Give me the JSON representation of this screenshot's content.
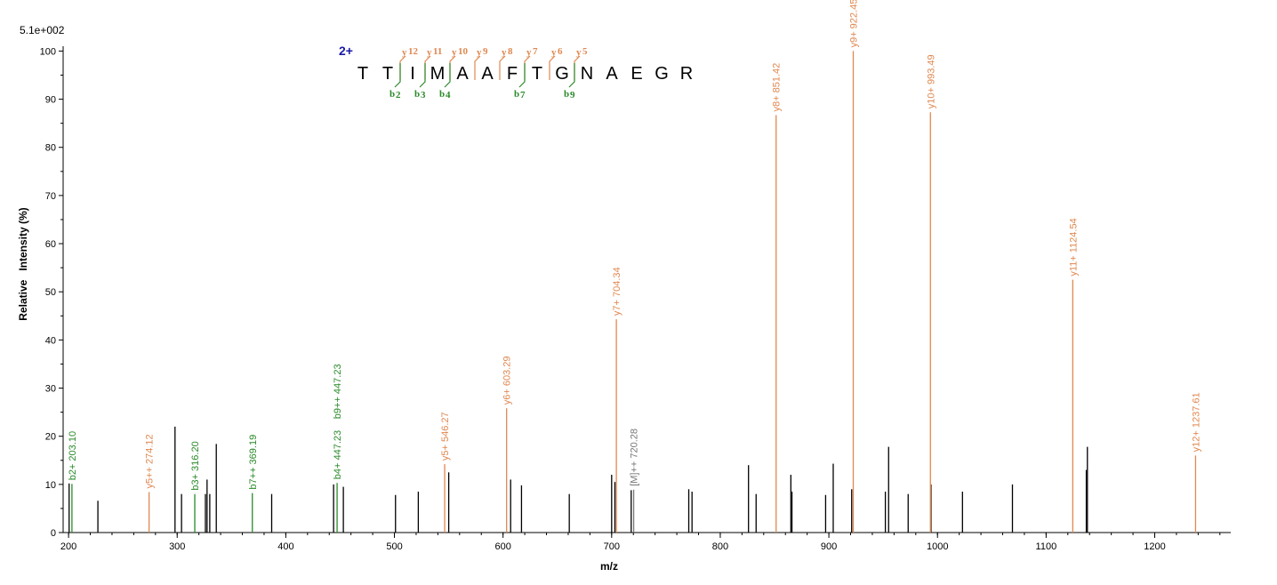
{
  "colors": {
    "y": "#e08850",
    "b": "#2a8a2a",
    "m": "#777777",
    "unassigned": "#000000",
    "charge": "#1a1aa8",
    "axis": "#000000"
  },
  "chart_data": {
    "type": "bar",
    "scale_label": "5.1e+002",
    "xlabel": "m/z",
    "ylabel": "Relative   Intensity (%)",
    "xlim": [
      195,
      1270
    ],
    "ylim": [
      0,
      101
    ],
    "x_ticks": [
      200,
      300,
      400,
      500,
      600,
      700,
      800,
      900,
      1000,
      1100,
      1200
    ],
    "y_ticks": [
      0,
      10,
      20,
      30,
      40,
      50,
      60,
      70,
      80,
      90,
      100
    ],
    "x_minor_step": 20,
    "labeled_peaks": [
      {
        "mz": 203.1,
        "intensity": 10.1,
        "ion": "b",
        "label": "b2+ 203.10"
      },
      {
        "mz": 274.12,
        "intensity": 8.4,
        "ion": "y",
        "label": "y5++ 274.12"
      },
      {
        "mz": 316.2,
        "intensity": 8.0,
        "ion": "b",
        "label": "b3+ 316.20"
      },
      {
        "mz": 369.19,
        "intensity": 8.2,
        "ion": "b",
        "label": "b7++ 369.19"
      },
      {
        "mz": 447.23,
        "intensity": 10.3,
        "ion": "b",
        "label": "b4+ 447.23",
        "label2": "b9++ 447.23"
      },
      {
        "mz": 546.27,
        "intensity": 14.2,
        "ion": "y",
        "label": "y5+ 546.27"
      },
      {
        "mz": 603.29,
        "intensity": 25.8,
        "ion": "y",
        "label": "y6+ 603.29"
      },
      {
        "mz": 704.34,
        "intensity": 44.3,
        "ion": "y",
        "label": "y7+ 704.34"
      },
      {
        "mz": 720.28,
        "intensity": 8.9,
        "ion": "m",
        "label": "[M]++ 720.28"
      },
      {
        "mz": 851.42,
        "intensity": 86.7,
        "ion": "y",
        "label": "y8+ 851.42"
      },
      {
        "mz": 922.45,
        "intensity": 100.0,
        "ion": "y",
        "label": "y9+ 922.45"
      },
      {
        "mz": 993.49,
        "intensity": 87.3,
        "ion": "y",
        "label": "y10+ 993.49"
      },
      {
        "mz": 1124.54,
        "intensity": 52.5,
        "ion": "y",
        "label": "y11+ 1124.54"
      },
      {
        "mz": 1237.61,
        "intensity": 16.0,
        "ion": "y",
        "label": "y12+ 1237.61"
      }
    ],
    "unlabeled_peaks": [
      [
        200.5,
        10.2
      ],
      [
        227,
        6.6
      ],
      [
        298,
        22.0
      ],
      [
        304,
        8.0
      ],
      [
        326,
        8.0
      ],
      [
        327.5,
        11.0
      ],
      [
        330,
        8.0
      ],
      [
        336,
        18.4
      ],
      [
        387,
        8.0
      ],
      [
        444,
        10.0
      ],
      [
        453,
        9.5
      ],
      [
        501,
        7.8
      ],
      [
        522,
        8.5
      ],
      [
        550,
        12.5
      ],
      [
        607,
        11.0
      ],
      [
        617,
        9.8
      ],
      [
        661,
        8.0
      ],
      [
        700,
        12.0
      ],
      [
        703,
        10.5
      ],
      [
        718,
        8.8
      ],
      [
        771,
        9.0
      ],
      [
        774,
        8.5
      ],
      [
        826,
        14.0
      ],
      [
        833,
        8.0
      ],
      [
        865,
        12.0
      ],
      [
        866,
        8.5
      ],
      [
        897,
        7.8
      ],
      [
        904,
        14.3
      ],
      [
        921,
        9.0
      ],
      [
        952,
        8.5
      ],
      [
        955,
        17.8
      ],
      [
        973,
        8.0
      ],
      [
        994,
        10.0
      ],
      [
        1023,
        8.5
      ],
      [
        1069,
        10.0
      ],
      [
        1137,
        13.0
      ],
      [
        1138,
        17.8
      ]
    ]
  },
  "sequence": {
    "charge": "2+",
    "residues": [
      "T",
      "T",
      "I",
      "M",
      "A",
      "A",
      "F",
      "T",
      "G",
      "N",
      "A",
      "E",
      "G",
      "R"
    ],
    "y_ions": [
      {
        "after": 2,
        "label": "y",
        "num": "12"
      },
      {
        "after": 3,
        "label": "y",
        "num": "11"
      },
      {
        "after": 4,
        "label": "y",
        "num": "10"
      },
      {
        "after": 5,
        "label": "y",
        "num": "9"
      },
      {
        "after": 6,
        "label": "y",
        "num": "8"
      },
      {
        "after": 7,
        "label": "y",
        "num": "7"
      },
      {
        "after": 8,
        "label": "y",
        "num": "6"
      },
      {
        "after": 9,
        "label": "y",
        "num": "5"
      }
    ],
    "b_ions": [
      {
        "after": 2,
        "label": "b",
        "num": "2"
      },
      {
        "after": 3,
        "label": "b",
        "num": "3"
      },
      {
        "after": 4,
        "label": "b",
        "num": "4"
      },
      {
        "after": 7,
        "label": "b",
        "num": "7"
      },
      {
        "after": 9,
        "label": "b",
        "num": "9"
      }
    ]
  }
}
